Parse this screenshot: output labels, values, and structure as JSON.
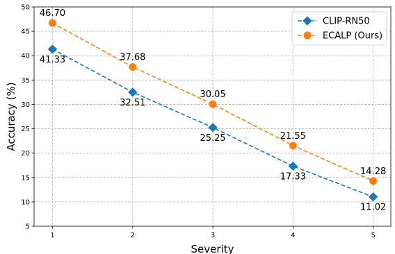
{
  "chart_data": {
    "type": "line",
    "x": [
      1,
      2,
      3,
      4,
      5
    ],
    "series": [
      {
        "name": "CLIP-RN50",
        "values": [
          41.33,
          32.51,
          25.25,
          17.33,
          11.02
        ],
        "labels": [
          "41.33",
          "32.51",
          "25.25",
          "17.33",
          "11.02"
        ],
        "color": "#1f77b4",
        "marker": "diamond",
        "line_style": "dashed",
        "label_position": "below"
      },
      {
        "name": "ECALP (Ours)",
        "values": [
          46.7,
          37.68,
          30.05,
          21.55,
          14.28
        ],
        "labels": [
          "46.70",
          "37.68",
          "30.05",
          "21.55",
          "14.28"
        ],
        "color": "#ff7f0e",
        "marker": "circle",
        "line_style": "dashed",
        "label_position": "above"
      }
    ],
    "xlabel": "Severity",
    "ylabel": "Accuracy (%)",
    "xlim": [
      0.77,
      5.22
    ],
    "ylim": [
      5,
      50
    ],
    "xticks": [
      1,
      2,
      3,
      4,
      5
    ],
    "xtick_labels": [
      "1",
      "2",
      "3",
      "4",
      "5"
    ],
    "yticks": [
      5,
      10,
      15,
      20,
      25,
      30,
      35,
      40,
      45,
      50
    ],
    "ytick_labels": [
      "5",
      "10",
      "15",
      "20",
      "25",
      "30",
      "35",
      "40",
      "45",
      "50"
    ],
    "grid": true,
    "legend_position": "top-right"
  }
}
